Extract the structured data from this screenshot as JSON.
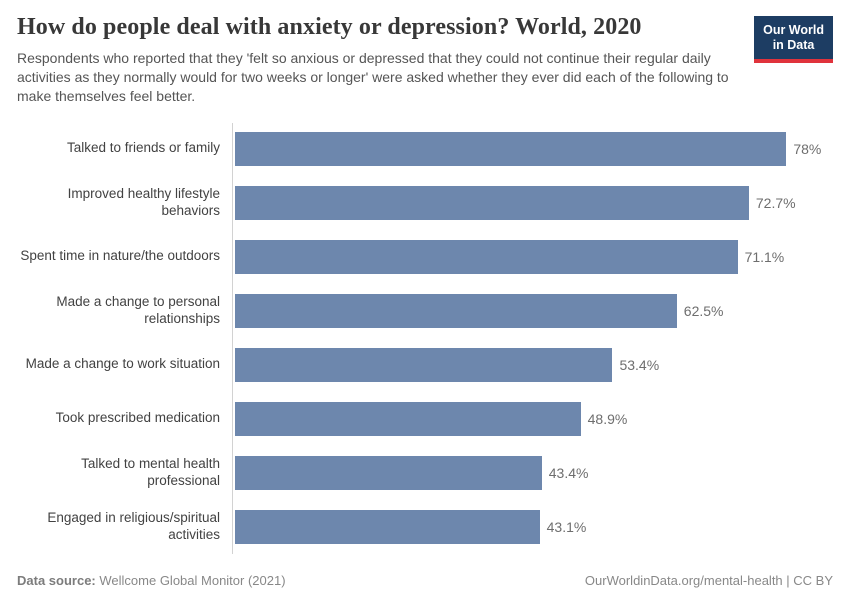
{
  "header": {
    "title": "How do people deal with anxiety or depression? World, 2020",
    "subtitle": "Respondents who reported that they 'felt so anxious or depressed that they could not continue their regular daily activities as they normally would for two weeks or longer' were asked whether they ever did each of the following to make themselves feel better.",
    "logo": {
      "line1": "Our World",
      "line2": "in Data",
      "bg_color": "#1d3d63",
      "accent_color": "#e0333c"
    }
  },
  "chart_data": {
    "type": "bar",
    "orientation": "horizontal",
    "title": "How do people deal with anxiety or depression? World, 2020",
    "categories": [
      "Talked to friends or family",
      "Improved healthy lifestyle behaviors",
      "Spent time in nature/the outdoors",
      "Made a change to personal relationships",
      "Made a change to work situation",
      "Took prescribed medication",
      "Talked to mental health professional",
      "Engaged in religious/spiritual activities"
    ],
    "values": [
      78,
      72.7,
      71.1,
      62.5,
      53.4,
      48.9,
      43.4,
      43.1
    ],
    "value_labels": [
      "78%",
      "72.7%",
      "71.1%",
      "62.5%",
      "53.4%",
      "48.9%",
      "43.4%",
      "43.1%"
    ],
    "bar_color": "#6d87ad",
    "xlabel": "",
    "ylabel": "",
    "xlim": [
      0,
      84.6
    ],
    "grid": false,
    "legend_position": "none"
  },
  "footer": {
    "source_label": "Data source:",
    "source_text": "Wellcome Global Monitor (2021)",
    "link_text": "OurWorldinData.org/mental-health | CC BY"
  }
}
